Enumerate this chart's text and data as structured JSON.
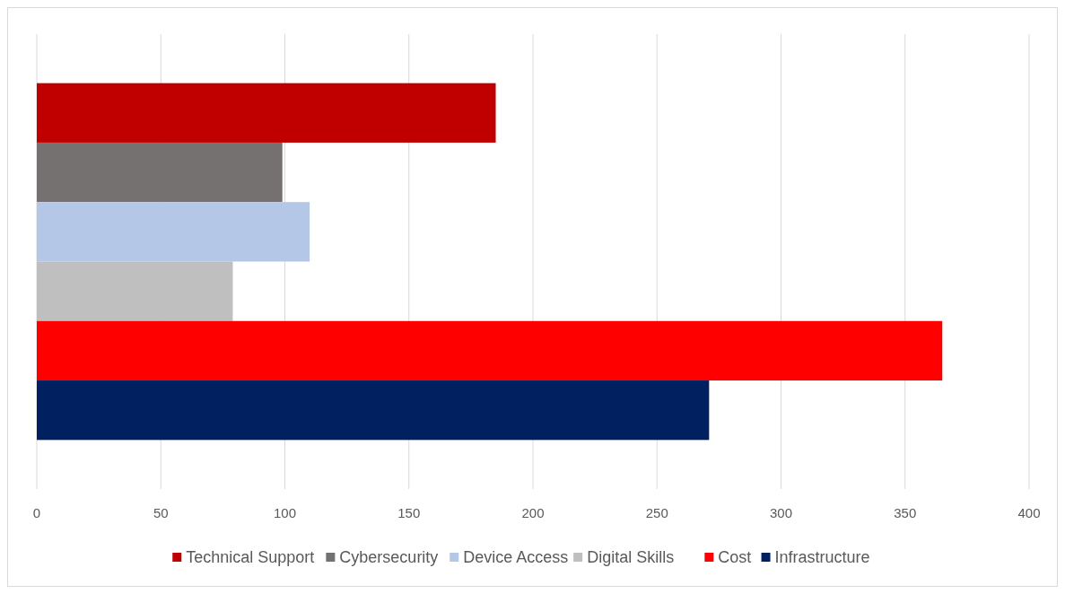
{
  "chart_data": {
    "type": "bar",
    "orientation": "horizontal",
    "categories": [
      null
    ],
    "series": [
      {
        "name": "Technical Support",
        "color": "#c00000",
        "values": [
          185
        ]
      },
      {
        "name": "Cybersecurity",
        "color": "#767171",
        "values": [
          99
        ]
      },
      {
        "name": "Device Access",
        "color": "#b4c7e7",
        "values": [
          110
        ]
      },
      {
        "name": "Digital Skills",
        "color": "#bfbfbf",
        "values": [
          79
        ]
      },
      {
        "name": "Cost",
        "color": "#ff0000",
        "values": [
          365
        ]
      },
      {
        "name": "Infrastructure",
        "color": "#002060",
        "values": [
          271
        ]
      }
    ],
    "xlim": [
      0,
      400
    ],
    "xticks": [
      0,
      50,
      100,
      150,
      200,
      250,
      300,
      350,
      400
    ],
    "grid": "x",
    "legend": "bottom",
    "tick_labels": "x"
  }
}
